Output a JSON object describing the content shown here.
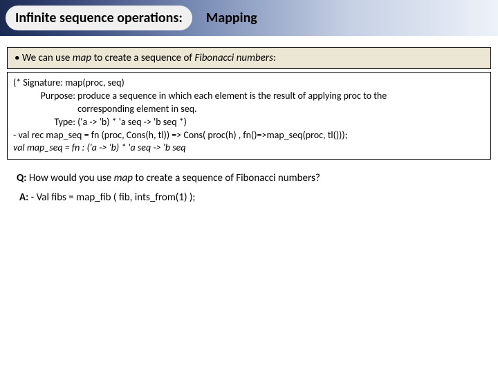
{
  "header": {
    "title_pill": "Infinite sequence operations:",
    "subtitle": "Mapping"
  },
  "bullet": {
    "prefix": "• We can use ",
    "emph1": "map",
    "mid": " to create a sequence of ",
    "emph2": "Fibonacci numbers",
    "suffix": ":"
  },
  "codebox": {
    "sig_label": "(* Signature:",
    "sig_text": "map(proc, seq)",
    "purpose_label": "Purpose:",
    "purpose_text1": "produce a sequence in which each element is the result of applying proc to the",
    "purpose_text2": "corresponding element in seq.",
    "type_label": "Type:",
    "type_text": "('a -> 'b) * 'a seq -> 'b seq  *)",
    "code_line": "- val rec map_seq = fn (proc, Cons(h, tl)) => Cons( proc(h) , fn()=>map_seq(proc, tl()));",
    "result_line": "val map_seq = fn : ('a -> 'b) * 'a seq -> 'b seq"
  },
  "question": {
    "q_label": "Q:",
    "q_before": " How would you use ",
    "q_emph": "map",
    "q_after": " to create a sequence of Fibonacci numbers?"
  },
  "answer": {
    "a_label": "A:",
    "a_text": " - Val fibs = map_fib ( fib, ints_from(1) );"
  },
  "colors": {
    "bullet_bg": "#ece6d4",
    "border": "#000000",
    "header_grad_start": "#1b2a52",
    "header_grad_end": "#eef2f9"
  }
}
